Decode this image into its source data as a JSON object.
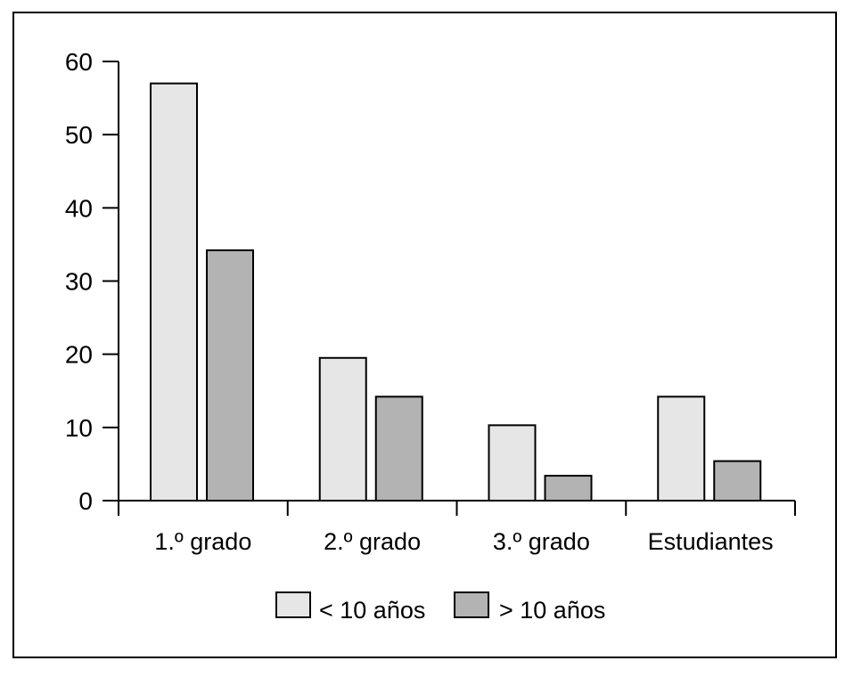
{
  "chart_data": {
    "type": "bar",
    "categories": [
      "1.º grado",
      "2.º grado",
      "3.º grado",
      "Estudiantes"
    ],
    "series": [
      {
        "name": "< 10 años",
        "values": [
          57,
          19.5,
          10.3,
          14.2
        ],
        "color": "#e6e6e6"
      },
      {
        "name": "> 10 años",
        "values": [
          34.2,
          14.2,
          3.4,
          5.4
        ],
        "color": "#b3b3b3"
      }
    ],
    "yticks": [
      0,
      10,
      20,
      30,
      40,
      50,
      60
    ],
    "ylim": [
      0,
      60
    ],
    "title": "",
    "xlabel": "",
    "ylabel": "",
    "grid": false,
    "legend_position": "bottom"
  }
}
